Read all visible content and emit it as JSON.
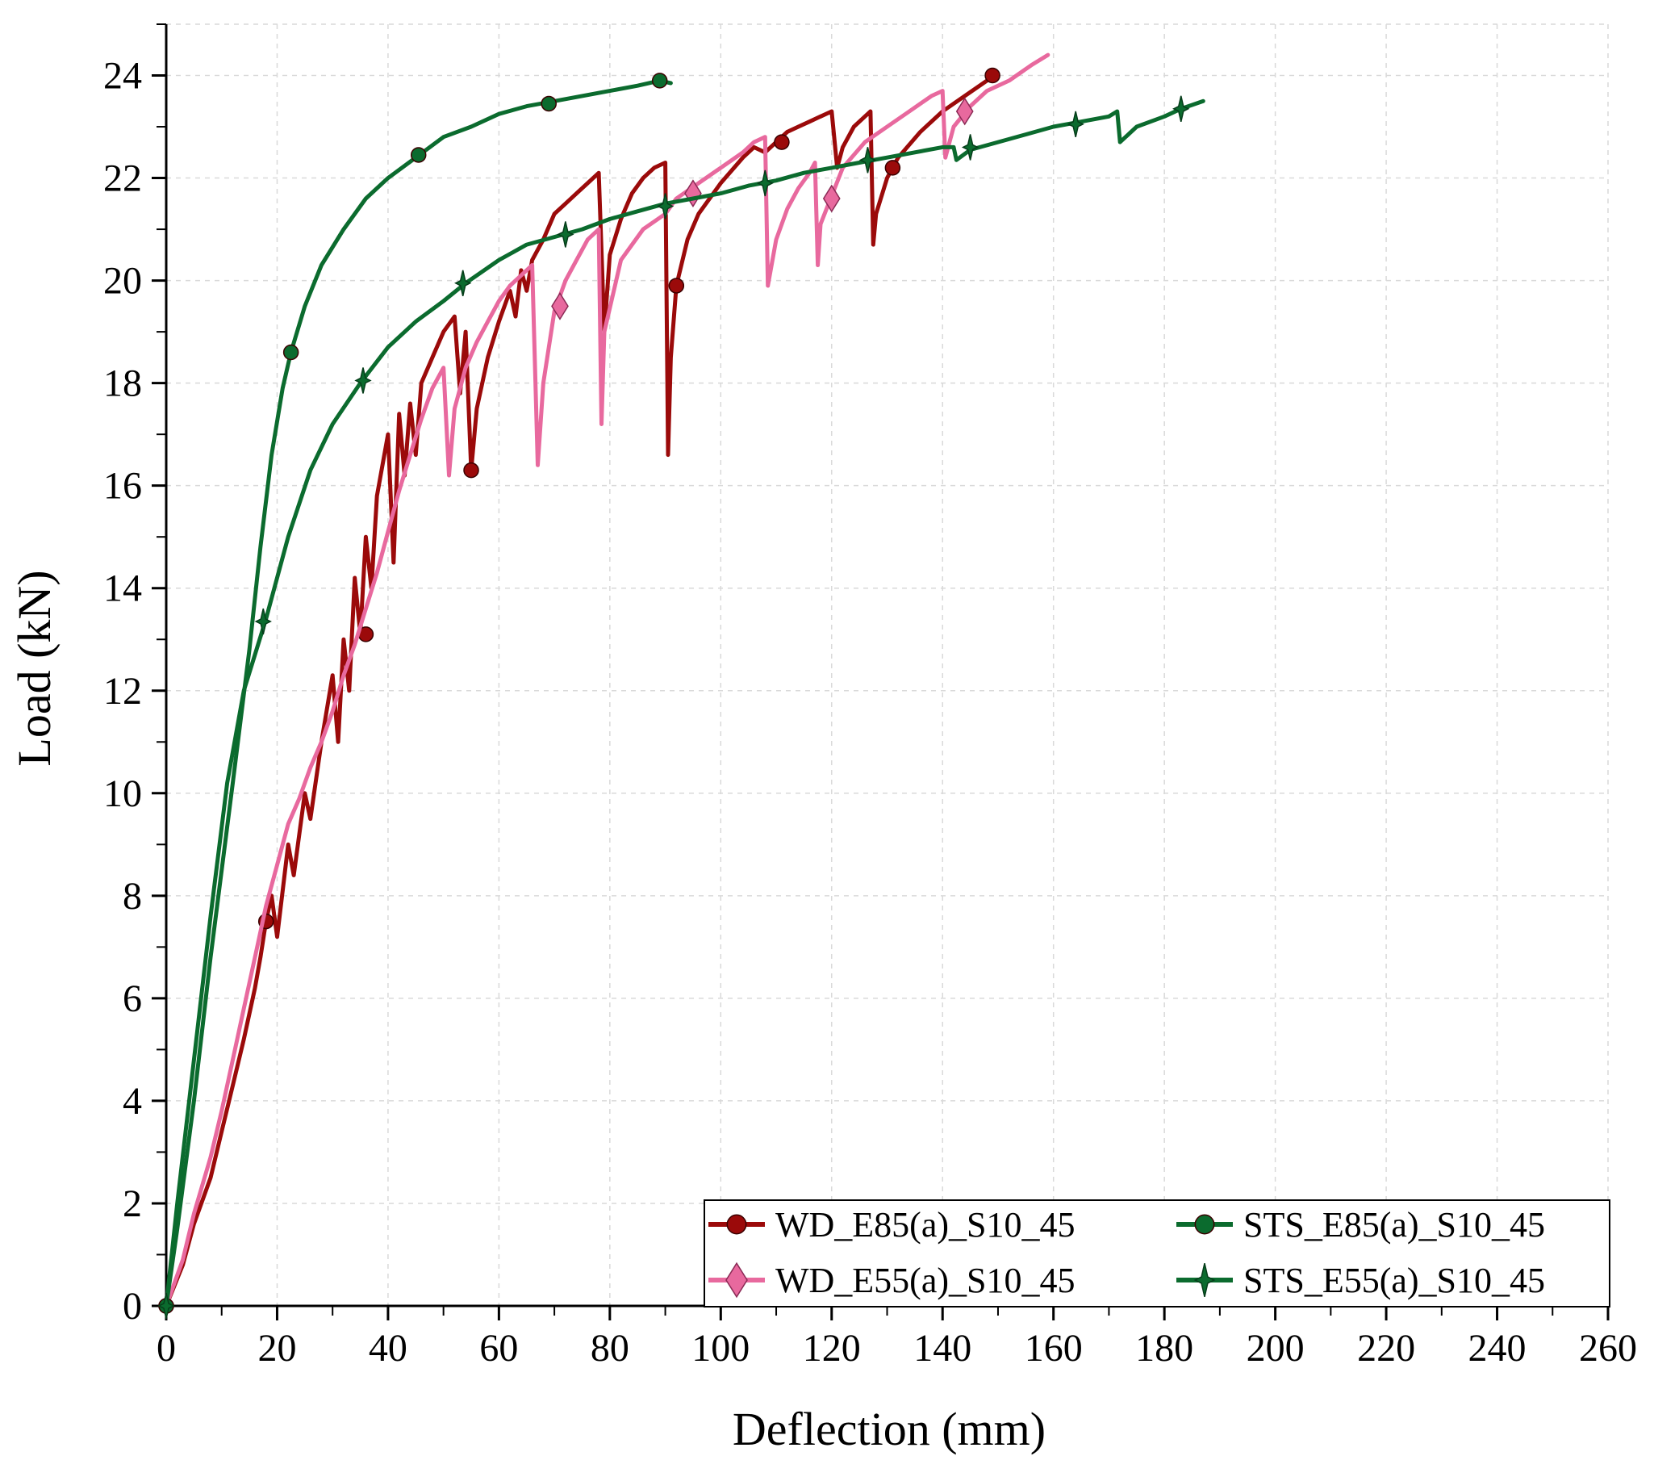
{
  "chart_data": {
    "type": "line",
    "title": "",
    "xlabel": "Deflection (mm)",
    "ylabel": "Load (kN)",
    "xlim": [
      0,
      260
    ],
    "ylim": [
      0,
      25
    ],
    "x_ticks": [
      0,
      20,
      40,
      60,
      80,
      100,
      120,
      140,
      160,
      180,
      200,
      220,
      240,
      260
    ],
    "y_ticks": [
      0,
      2,
      4,
      6,
      8,
      10,
      12,
      14,
      16,
      18,
      20,
      22,
      24
    ],
    "x_tick_labels": [
      "0",
      "20",
      "40",
      "60",
      "80",
      "100",
      "120",
      "140",
      "160",
      "180",
      "200",
      "220",
      "240",
      "260"
    ],
    "y_tick_labels": [
      "0",
      "2",
      "4",
      "6",
      "8",
      "10",
      "12",
      "14",
      "16",
      "18",
      "20",
      "22",
      "24"
    ],
    "grid": true,
    "legend_position": "bottom-right",
    "series": [
      {
        "name": "WD_E85(a)_S10_45",
        "color": "#9B0A0A",
        "marker": "circle",
        "x": [
          0,
          3,
          5,
          8,
          10,
          12,
          14,
          16,
          17,
          18,
          19,
          20,
          22,
          23,
          25,
          26,
          28,
          30,
          31,
          32,
          33,
          34,
          35,
          36,
          37,
          38,
          40,
          41,
          42,
          43,
          44,
          45,
          46,
          48,
          50,
          52,
          53,
          54,
          55,
          56,
          58,
          60,
          62,
          63,
          64,
          65,
          66,
          68,
          70,
          72,
          74,
          76,
          78,
          79,
          80,
          82,
          84,
          86,
          88,
          90,
          90.5,
          91,
          92,
          94,
          96,
          100,
          104,
          106,
          108,
          110,
          112,
          114,
          116,
          118,
          120,
          121,
          122,
          124,
          126,
          127,
          127.5,
          128,
          130,
          132,
          136,
          140,
          144,
          148,
          150
        ],
        "y": [
          0,
          0.8,
          1.6,
          2.5,
          3.4,
          4.3,
          5.2,
          6.2,
          6.8,
          7.5,
          8.0,
          7.2,
          9.0,
          8.4,
          10.0,
          9.5,
          11.0,
          12.3,
          11.0,
          13.0,
          12.0,
          14.2,
          13.1,
          15.0,
          14.0,
          15.8,
          17.0,
          14.5,
          17.4,
          16.2,
          17.6,
          16.6,
          18.0,
          18.5,
          19.0,
          19.3,
          17.8,
          19.0,
          16.3,
          17.5,
          18.5,
          19.2,
          19.8,
          19.3,
          20.2,
          19.8,
          20.4,
          20.8,
          21.3,
          21.5,
          21.7,
          21.9,
          22.1,
          19.0,
          20.5,
          21.2,
          21.7,
          22.0,
          22.2,
          22.3,
          16.6,
          18.5,
          19.9,
          20.8,
          21.3,
          21.9,
          22.4,
          22.6,
          22.5,
          22.7,
          22.9,
          23.0,
          23.1,
          23.2,
          23.3,
          22.2,
          22.6,
          23.0,
          23.2,
          23.3,
          20.7,
          21.3,
          22.0,
          22.4,
          22.9,
          23.3,
          23.6,
          23.9,
          24.0
        ],
        "markers": [
          [
            0,
            0
          ],
          [
            18,
            7.5
          ],
          [
            36,
            13.1
          ],
          [
            55,
            16.3
          ],
          [
            92,
            19.9
          ],
          [
            111,
            22.7
          ],
          [
            131,
            22.2
          ],
          [
            149,
            24.0
          ]
        ]
      },
      {
        "name": "WD_E55(a)_S10_45",
        "color": "#E8699E",
        "marker": "diamond",
        "x": [
          0,
          3,
          5,
          8,
          10,
          12,
          14,
          16,
          18,
          20,
          22,
          24,
          26,
          28,
          30,
          32,
          34,
          36,
          38,
          40,
          42,
          44,
          46,
          48,
          50,
          51,
          52,
          54,
          56,
          58,
          60,
          62,
          64,
          66,
          67,
          68,
          70,
          72,
          74,
          76,
          78,
          78.5,
          79,
          82,
          86,
          90,
          92,
          96,
          100,
          104,
          106,
          108,
          108.5,
          110,
          112,
          114,
          116,
          117,
          117.5,
          118,
          122,
          126,
          130,
          134,
          138,
          140,
          140.5,
          142,
          145,
          148,
          152,
          156,
          159
        ],
        "y": [
          0,
          0.9,
          1.8,
          2.9,
          3.8,
          4.8,
          5.8,
          6.8,
          7.8,
          8.6,
          9.4,
          9.9,
          10.5,
          11.0,
          11.6,
          12.3,
          12.9,
          13.6,
          14.3,
          15.1,
          15.9,
          16.6,
          17.3,
          17.9,
          18.3,
          16.2,
          17.5,
          18.3,
          18.8,
          19.2,
          19.6,
          19.9,
          20.1,
          20.3,
          16.4,
          18.0,
          19.4,
          20.0,
          20.4,
          20.8,
          21.0,
          17.2,
          19.0,
          20.4,
          21.0,
          21.3,
          21.6,
          21.9,
          22.2,
          22.5,
          22.7,
          22.8,
          19.9,
          20.8,
          21.4,
          21.8,
          22.1,
          22.3,
          20.3,
          21.1,
          22.2,
          22.7,
          23.0,
          23.3,
          23.6,
          23.7,
          22.4,
          23.0,
          23.4,
          23.7,
          23.9,
          24.2,
          24.4
        ],
        "markers": [
          [
            71,
            19.5
          ],
          [
            95,
            21.7
          ],
          [
            120,
            21.6
          ],
          [
            144,
            23.3
          ]
        ]
      },
      {
        "name": "STS_E85(a)_S10_45",
        "color": "#0B6B2E",
        "marker": "circle",
        "x": [
          0,
          2,
          5,
          8,
          12,
          15,
          17,
          19,
          21,
          22.5,
          25,
          28,
          32,
          36,
          40,
          45,
          50,
          55,
          60,
          65,
          70,
          75,
          80,
          85,
          89,
          91
        ],
        "y": [
          0,
          1.5,
          4.0,
          6.8,
          10.2,
          12.8,
          14.8,
          16.6,
          17.9,
          18.6,
          19.5,
          20.3,
          21.0,
          21.6,
          22.0,
          22.4,
          22.8,
          23.0,
          23.25,
          23.4,
          23.5,
          23.6,
          23.7,
          23.8,
          23.9,
          23.85
        ],
        "markers": [
          [
            0,
            0
          ],
          [
            22.5,
            18.6
          ],
          [
            45.5,
            22.45
          ],
          [
            69,
            23.45
          ],
          [
            89,
            23.9
          ]
        ]
      },
      {
        "name": "STS_E55(a)_S10_45",
        "color": "#0B6B2E",
        "marker": "star4",
        "x": [
          0,
          2,
          5,
          8,
          11,
          14,
          18,
          22,
          26,
          30,
          35,
          40,
          45,
          50,
          54,
          60,
          65,
          70,
          75,
          80,
          85,
          90,
          95,
          100,
          105,
          110,
          115,
          120,
          125,
          130,
          135,
          140,
          142,
          142.5,
          145,
          150,
          155,
          160,
          165,
          170,
          171.5,
          172,
          175,
          180,
          183,
          187
        ],
        "y": [
          0,
          2.0,
          4.8,
          7.6,
          10.2,
          12.0,
          13.4,
          15.0,
          16.3,
          17.2,
          18.0,
          18.7,
          19.2,
          19.6,
          19.95,
          20.4,
          20.7,
          20.85,
          21.0,
          21.2,
          21.35,
          21.5,
          21.6,
          21.7,
          21.85,
          21.95,
          22.1,
          22.2,
          22.3,
          22.4,
          22.5,
          22.6,
          22.6,
          22.35,
          22.55,
          22.7,
          22.85,
          23.0,
          23.1,
          23.2,
          23.3,
          22.7,
          23.0,
          23.2,
          23.35,
          23.5
        ],
        "markers": [
          [
            0,
            0
          ],
          [
            17.5,
            13.35
          ],
          [
            35.5,
            18.05
          ],
          [
            53.5,
            19.95
          ],
          [
            72,
            20.9
          ],
          [
            90,
            21.45
          ],
          [
            108,
            21.9
          ],
          [
            126.5,
            22.35
          ],
          [
            145,
            22.6
          ],
          [
            164,
            23.05
          ],
          [
            183,
            23.35
          ]
        ]
      }
    ]
  }
}
